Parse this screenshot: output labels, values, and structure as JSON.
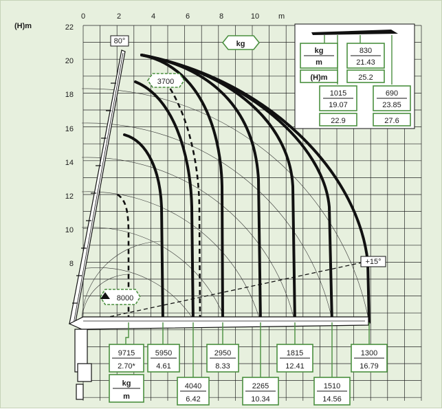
{
  "axes": {
    "y_title": "(H)m",
    "x_unit": "m",
    "x_ticks": [
      "0",
      "2",
      "4",
      "6",
      "8",
      "10"
    ],
    "y_ticks": [
      "22",
      "20",
      "18",
      "16",
      "14",
      "12",
      "10",
      "8"
    ]
  },
  "angles": {
    "max": "80°",
    "min": "+15°"
  },
  "unit_tag": "kg",
  "capacity_tags": {
    "c3700": "3700",
    "c8000": "8000"
  },
  "legend_box": {
    "kg": "kg",
    "m": "m",
    "h": "(H)m"
  },
  "ext_labels": [
    {
      "kg": "830",
      "m": "21.43",
      "h": "25.2"
    },
    {
      "kg": "1015",
      "m": "19.07",
      "h": "22.9"
    },
    {
      "kg": "690",
      "m": "23.85",
      "h": "27.6"
    }
  ],
  "bottom_boxes": [
    {
      "kg": "9715",
      "m": "2.70*"
    },
    {
      "kg": "5950",
      "m": "4.61"
    },
    {
      "kg": "4040",
      "m": "6.42"
    },
    {
      "kg": "2950",
      "m": "8.33"
    },
    {
      "kg": "2265",
      "m": "10.34"
    },
    {
      "kg": "1815",
      "m": "12.41"
    },
    {
      "kg": "1510",
      "m": "14.56"
    },
    {
      "kg": "1300",
      "m": "16.79"
    }
  ],
  "bottom_unit": {
    "kg": "kg",
    "m": "m"
  },
  "colors": {
    "background": "#e7f0de",
    "accent_green": "#4a8f3f",
    "ink": "#111111"
  }
}
